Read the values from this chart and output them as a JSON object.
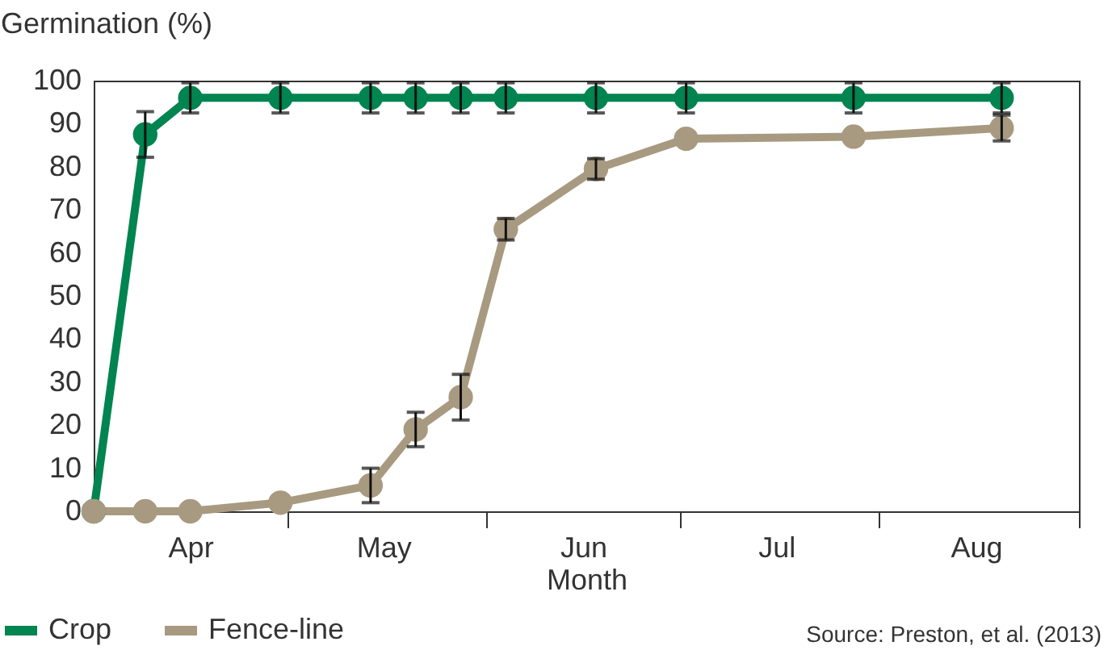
{
  "chart_data": {
    "type": "line",
    "xlabel": "Month",
    "ylabel": "Germination (%)",
    "x": [
      "--04-01",
      "--04-09",
      "--04-16",
      "--04-30",
      "--05-14",
      "--05-21",
      "--05-28",
      "--06-04",
      "--06-18",
      "--07-02",
      "--07-28",
      "--08-20"
    ],
    "series": [
      {
        "name": "Crop",
        "color": "#008450",
        "values": [
          0,
          87.5,
          96,
          96,
          96,
          96,
          96,
          96,
          96,
          96,
          96,
          96
        ],
        "errors": [
          null,
          5.3,
          3.5,
          3.5,
          3.5,
          3.5,
          3.5,
          3.5,
          3.5,
          3.5,
          3.5,
          3.5
        ]
      },
      {
        "name": "Fence-line",
        "color": "#a89a80",
        "values": [
          0,
          0,
          0,
          2,
          6,
          19,
          26.5,
          65.5,
          79.5,
          86.5,
          87,
          89
        ],
        "errors": [
          null,
          null,
          null,
          null,
          4,
          4,
          5.3,
          2.5,
          2.4,
          null,
          null,
          3
        ]
      }
    ],
    "xlim": [
      "--04-01",
      "--09-01"
    ],
    "xticks": [
      {
        "value": "--04-16",
        "label": "Apr"
      },
      {
        "value": "--05-01",
        "label": null
      },
      {
        "value": "--05-16",
        "label": "May"
      },
      {
        "value": "--06-01",
        "label": null
      },
      {
        "value": "--06-16",
        "label": "Jun"
      },
      {
        "value": "--07-01",
        "label": null
      },
      {
        "value": "--07-16",
        "label": "Jul"
      },
      {
        "value": "--08-01",
        "label": null
      },
      {
        "value": "--08-16",
        "label": "Aug"
      },
      {
        "value": "--09-01",
        "label": null
      }
    ],
    "ylim": [
      0,
      100
    ],
    "yticks": [
      0,
      10,
      20,
      30,
      40,
      50,
      60,
      70,
      80,
      90,
      100
    ],
    "marker": "circle",
    "legend": "bottom left",
    "annotations": [
      "Source: Preston, et al. (2013)"
    ]
  }
}
